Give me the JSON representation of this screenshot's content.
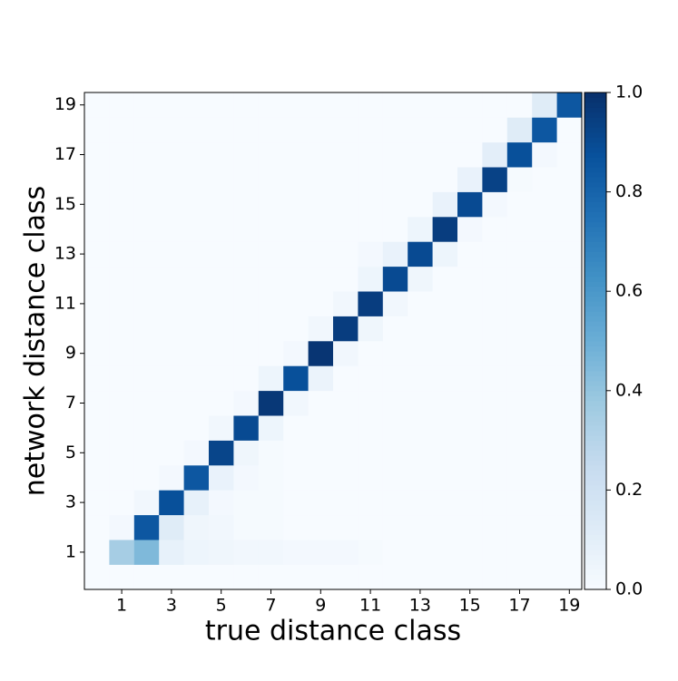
{
  "chart_data": {
    "type": "heatmap",
    "x_label": "true distance class",
    "y_label": "network distance class",
    "x": [
      0,
      1,
      2,
      3,
      4,
      5,
      6,
      7,
      8,
      9,
      10,
      11,
      12,
      13,
      14,
      15,
      16,
      17,
      18,
      19
    ],
    "y": [
      0,
      1,
      2,
      3,
      4,
      5,
      6,
      7,
      8,
      9,
      10,
      11,
      12,
      13,
      14,
      15,
      16,
      17,
      18,
      19
    ],
    "xlim": [
      -0.5,
      19.5
    ],
    "ylim": [
      -0.5,
      19.5
    ],
    "xticks": [
      1,
      3,
      5,
      7,
      9,
      11,
      13,
      15,
      17,
      19
    ],
    "yticks": [
      1,
      3,
      5,
      7,
      9,
      11,
      13,
      15,
      17,
      19
    ],
    "colormap": "Blues",
    "zlim": [
      0,
      1
    ],
    "colorbar_ticks": [
      {
        "value": 0,
        "label": "0.0"
      },
      {
        "value": 0.2,
        "label": "0.2"
      },
      {
        "value": 0.4,
        "label": "0.4"
      },
      {
        "value": 0.6,
        "label": "0.6"
      },
      {
        "value": 0.8,
        "label": "0.8"
      },
      {
        "value": 1,
        "label": "1.0"
      }
    ],
    "z": [
      [
        0,
        0,
        0,
        0,
        0,
        0,
        0,
        0,
        0,
        0,
        0,
        0,
        0,
        0,
        0,
        0,
        0,
        0,
        0,
        0
      ],
      [
        0,
        0.35,
        0.45,
        0.08,
        0.05,
        0.04,
        0.03,
        0.03,
        0.02,
        0.02,
        0.02,
        0.01,
        0,
        0,
        0,
        0,
        0,
        0,
        0,
        0
      ],
      [
        0,
        0.02,
        0.85,
        0.12,
        0.04,
        0.03,
        0.01,
        0.01,
        0,
        0,
        0,
        0,
        0,
        0,
        0,
        0,
        0,
        0,
        0,
        0
      ],
      [
        0,
        0,
        0.03,
        0.88,
        0.08,
        0.02,
        0.01,
        0.01,
        0,
        0,
        0,
        0,
        0,
        0,
        0,
        0,
        0,
        0,
        0,
        0
      ],
      [
        0,
        0,
        0,
        0.02,
        0.85,
        0.07,
        0.02,
        0.01,
        0,
        0,
        0,
        0,
        0,
        0,
        0,
        0,
        0,
        0,
        0,
        0
      ],
      [
        0,
        0,
        0,
        0,
        0.02,
        0.92,
        0.04,
        0.01,
        0,
        0,
        0,
        0,
        0,
        0,
        0,
        0,
        0,
        0,
        0,
        0
      ],
      [
        0,
        0,
        0,
        0,
        0,
        0.03,
        0.9,
        0.05,
        0,
        0,
        0,
        0,
        0,
        0,
        0,
        0,
        0,
        0,
        0,
        0
      ],
      [
        0,
        0,
        0,
        0,
        0,
        0,
        0.02,
        0.97,
        0.03,
        0,
        0,
        0,
        0,
        0,
        0,
        0,
        0,
        0,
        0,
        0
      ],
      [
        0,
        0,
        0,
        0,
        0,
        0,
        0,
        0.05,
        0.88,
        0.06,
        0,
        0,
        0,
        0,
        0,
        0,
        0,
        0,
        0,
        0
      ],
      [
        0,
        0,
        0,
        0,
        0,
        0,
        0,
        0,
        0.02,
        0.98,
        0.03,
        0,
        0,
        0,
        0,
        0,
        0,
        0,
        0,
        0
      ],
      [
        0,
        0,
        0,
        0,
        0,
        0,
        0,
        0,
        0,
        0.03,
        0.95,
        0.04,
        0,
        0,
        0,
        0,
        0,
        0,
        0,
        0
      ],
      [
        0,
        0,
        0,
        0,
        0,
        0,
        0,
        0,
        0,
        0,
        0.03,
        0.95,
        0.03,
        0,
        0,
        0,
        0,
        0,
        0,
        0
      ],
      [
        0,
        0,
        0,
        0,
        0,
        0,
        0,
        0,
        0,
        0,
        0,
        0.05,
        0.9,
        0.04,
        0,
        0,
        0,
        0,
        0,
        0
      ],
      [
        0,
        0,
        0,
        0,
        0,
        0,
        0,
        0,
        0,
        0,
        0,
        0.02,
        0.07,
        0.9,
        0.05,
        0,
        0,
        0,
        0,
        0
      ],
      [
        0,
        0,
        0,
        0,
        0,
        0,
        0,
        0,
        0,
        0,
        0,
        0,
        0,
        0.05,
        0.95,
        0.02,
        0,
        0,
        0,
        0
      ],
      [
        0,
        0,
        0,
        0,
        0,
        0,
        0,
        0,
        0,
        0,
        0,
        0,
        0,
        0,
        0.07,
        0.9,
        0.02,
        0,
        0,
        0
      ],
      [
        0,
        0,
        0,
        0,
        0,
        0,
        0,
        0,
        0,
        0,
        0,
        0,
        0,
        0,
        0,
        0.07,
        0.93,
        0.01,
        0,
        0
      ],
      [
        0,
        0,
        0,
        0,
        0,
        0,
        0,
        0,
        0,
        0,
        0,
        0,
        0,
        0,
        0,
        0,
        0.1,
        0.88,
        0.02,
        0
      ],
      [
        0,
        0,
        0,
        0,
        0,
        0,
        0,
        0,
        0,
        0,
        0,
        0,
        0,
        0,
        0,
        0,
        0,
        0.12,
        0.85,
        0
      ],
      [
        0,
        0,
        0,
        0,
        0,
        0,
        0,
        0,
        0,
        0,
        0,
        0,
        0,
        0,
        0,
        0,
        0,
        0,
        0.12,
        0.85
      ]
    ]
  }
}
